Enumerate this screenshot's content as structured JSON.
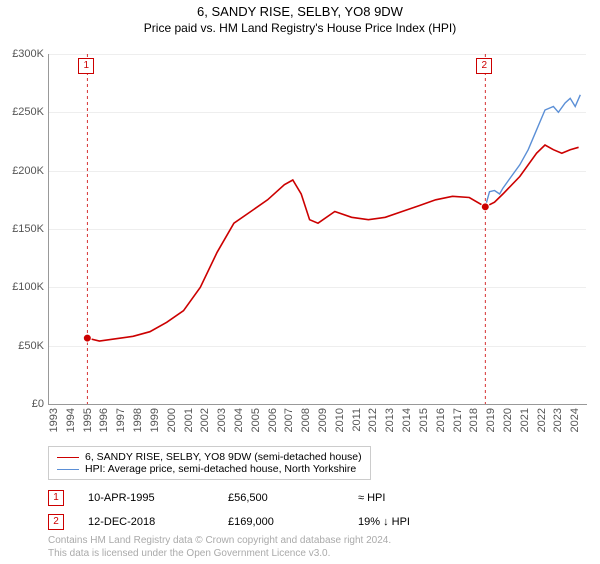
{
  "title": "6, SANDY RISE, SELBY, YO8 9DW",
  "subtitle": "Price paid vs. HM Land Registry's House Price Index (HPI)",
  "chart": {
    "type": "line",
    "background_color": "#ffffff",
    "grid_color": "#eeeeee",
    "axis_color": "#999999",
    "xlim": [
      1993,
      2025
    ],
    "ylim": [
      0,
      300000
    ],
    "ytick_step": 50000,
    "ytick_labels": [
      "£0",
      "£50K",
      "£100K",
      "£150K",
      "£200K",
      "£250K",
      "£300K"
    ],
    "xticks": [
      1993,
      1994,
      1995,
      1996,
      1997,
      1998,
      1999,
      2000,
      2001,
      2002,
      2003,
      2004,
      2005,
      2006,
      2007,
      2008,
      2009,
      2010,
      2011,
      2012,
      2013,
      2014,
      2015,
      2016,
      2017,
      2018,
      2019,
      2020,
      2021,
      2022,
      2023,
      2024
    ],
    "series": {
      "property": {
        "label": "6, SANDY RISE, SELBY, YO8 9DW (semi-detached house)",
        "color": "#cc0000",
        "line_width": 1.6,
        "data": [
          [
            1995.28,
            56500
          ],
          [
            1996,
            54000
          ],
          [
            1997,
            56000
          ],
          [
            1998,
            58000
          ],
          [
            1999,
            62000
          ],
          [
            2000,
            70000
          ],
          [
            2001,
            80000
          ],
          [
            2002,
            100000
          ],
          [
            2003,
            130000
          ],
          [
            2004,
            155000
          ],
          [
            2005,
            165000
          ],
          [
            2006,
            175000
          ],
          [
            2007,
            188000
          ],
          [
            2007.5,
            192000
          ],
          [
            2008,
            180000
          ],
          [
            2008.5,
            158000
          ],
          [
            2009,
            155000
          ],
          [
            2010,
            165000
          ],
          [
            2011,
            160000
          ],
          [
            2012,
            158000
          ],
          [
            2013,
            160000
          ],
          [
            2014,
            165000
          ],
          [
            2015,
            170000
          ],
          [
            2016,
            175000
          ],
          [
            2017,
            178000
          ],
          [
            2018,
            177000
          ],
          [
            2018.95,
            169000
          ],
          [
            2019.5,
            173000
          ],
          [
            2020,
            180000
          ],
          [
            2021,
            195000
          ],
          [
            2022,
            215000
          ],
          [
            2022.5,
            222000
          ],
          [
            2023,
            218000
          ],
          [
            2023.5,
            215000
          ],
          [
            2024,
            218000
          ],
          [
            2024.5,
            220000
          ]
        ]
      },
      "hpi": {
        "label": "HPI: Average price, semi-detached house, North Yorkshire",
        "color": "#5b8fd6",
        "line_width": 1.4,
        "data": [
          [
            2018.95,
            169000
          ],
          [
            2019.2,
            182000
          ],
          [
            2019.5,
            183000
          ],
          [
            2019.8,
            180000
          ],
          [
            2020,
            185000
          ],
          [
            2020.5,
            195000
          ],
          [
            2021,
            205000
          ],
          [
            2021.5,
            218000
          ],
          [
            2022,
            235000
          ],
          [
            2022.5,
            252000
          ],
          [
            2023,
            255000
          ],
          [
            2023.3,
            250000
          ],
          [
            2023.7,
            258000
          ],
          [
            2024,
            262000
          ],
          [
            2024.3,
            255000
          ],
          [
            2024.6,
            265000
          ]
        ]
      }
    },
    "events": [
      {
        "n": 1,
        "year": 1995.28,
        "value": 56500,
        "color": "#cc0000"
      },
      {
        "n": 2,
        "year": 2018.95,
        "value": 169000,
        "color": "#cc0000"
      }
    ],
    "event_line_color": "#cc0000",
    "event_line_dash": "3,3"
  },
  "legend": {
    "items": [
      {
        "color": "#cc0000",
        "label_ref": "chart.series.property.label"
      },
      {
        "color": "#5b8fd6",
        "label_ref": "chart.series.hpi.label"
      }
    ]
  },
  "sales": [
    {
      "n": "1",
      "date": "10-APR-1995",
      "price": "£56,500",
      "diff": "≈ HPI",
      "color": "#cc0000"
    },
    {
      "n": "2",
      "date": "12-DEC-2018",
      "price": "£169,000",
      "diff": "19% ↓ HPI",
      "color": "#cc0000"
    }
  ],
  "footer": {
    "line1": "Contains HM Land Registry data © Crown copyright and database right 2024.",
    "line2": "This data is licensed under the Open Government Licence v3.0."
  },
  "fonts": {
    "title_size": 13,
    "subtitle_size": 12,
    "tick_size": 11,
    "legend_size": 10.5,
    "footer_size": 10
  }
}
